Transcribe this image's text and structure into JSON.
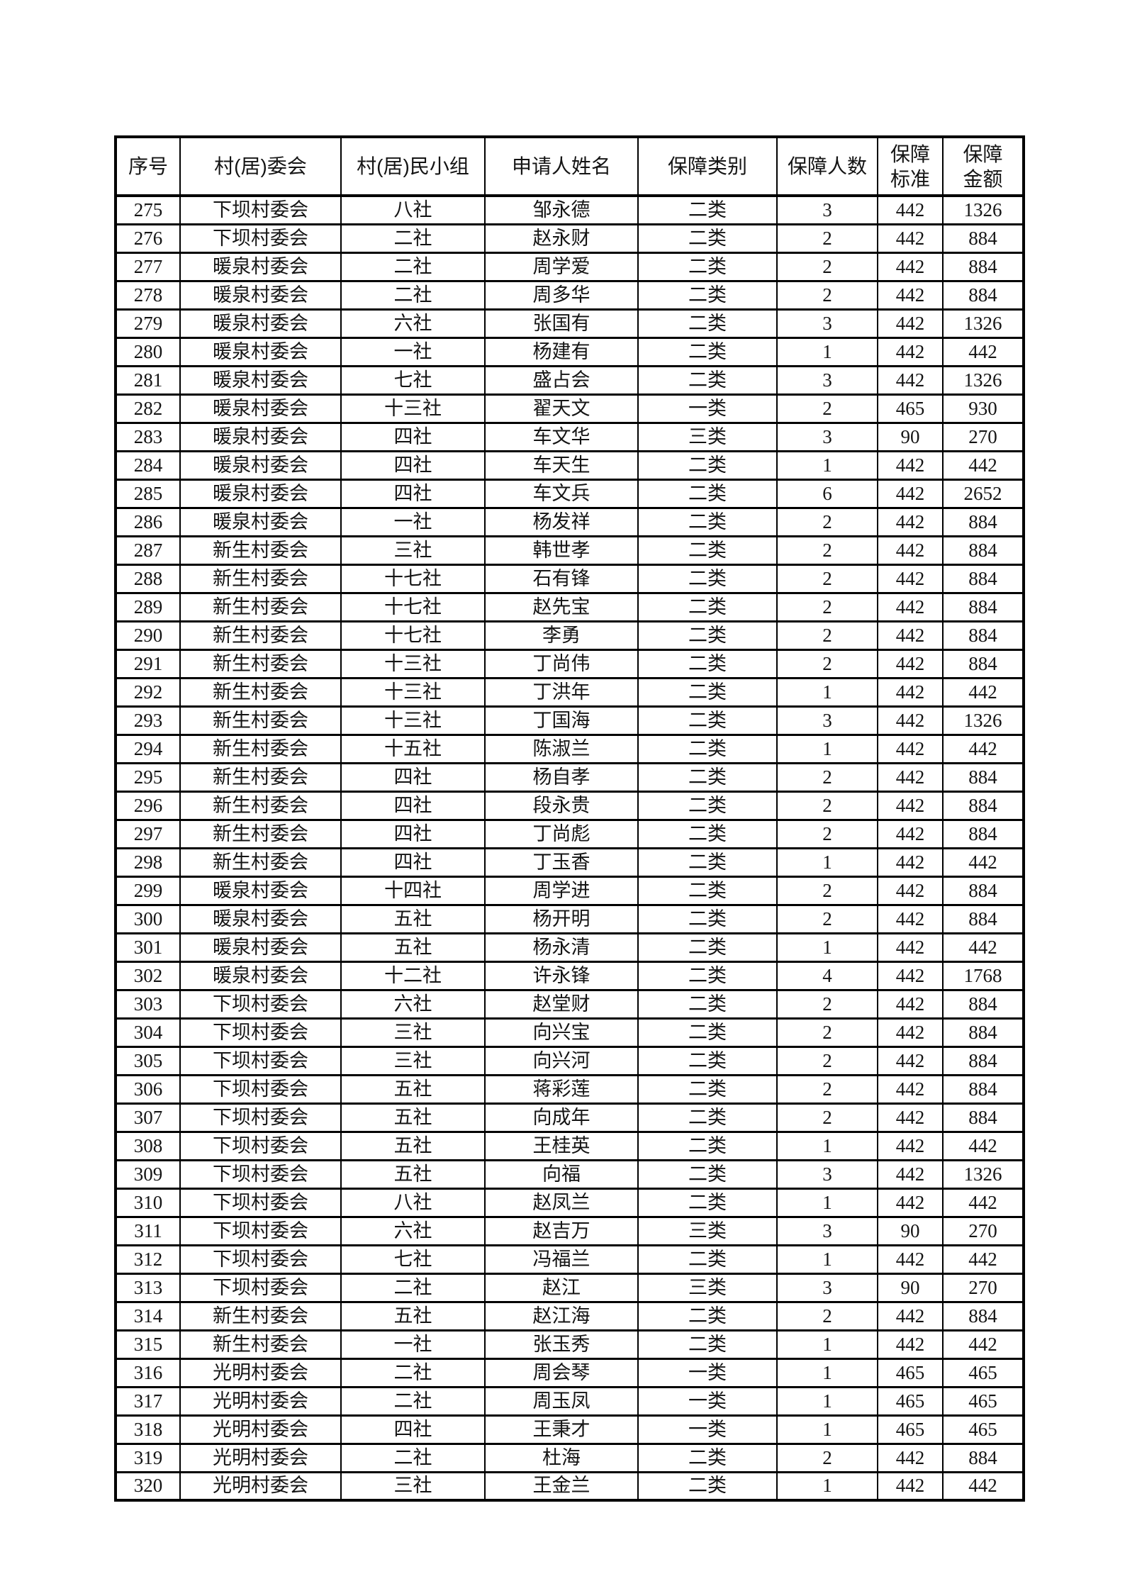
{
  "colors": {
    "background": "#ffffff",
    "text": "#141414",
    "border": "#000000"
  },
  "table": {
    "columns": [
      {
        "key": "index",
        "label": "序号"
      },
      {
        "key": "committee",
        "label": "村(居)委会"
      },
      {
        "key": "group",
        "label": "村(居)民小组"
      },
      {
        "key": "applicant",
        "label": "申请人姓名"
      },
      {
        "key": "category",
        "label": "保障类别"
      },
      {
        "key": "headcount",
        "label": "保障人数"
      },
      {
        "key": "standard",
        "label": "保障\n标准"
      },
      {
        "key": "amount",
        "label": "保障\n金额"
      }
    ],
    "rows": [
      [
        "275",
        "下坝村委会",
        "八社",
        "邹永德",
        "二类",
        "3",
        "442",
        "1326"
      ],
      [
        "276",
        "下坝村委会",
        "二社",
        "赵永财",
        "二类",
        "2",
        "442",
        "884"
      ],
      [
        "277",
        "暖泉村委会",
        "二社",
        "周学爱",
        "二类",
        "2",
        "442",
        "884"
      ],
      [
        "278",
        "暖泉村委会",
        "二社",
        "周多华",
        "二类",
        "2",
        "442",
        "884"
      ],
      [
        "279",
        "暖泉村委会",
        "六社",
        "张国有",
        "二类",
        "3",
        "442",
        "1326"
      ],
      [
        "280",
        "暖泉村委会",
        "一社",
        "杨建有",
        "二类",
        "1",
        "442",
        "442"
      ],
      [
        "281",
        "暖泉村委会",
        "七社",
        "盛占会",
        "二类",
        "3",
        "442",
        "1326"
      ],
      [
        "282",
        "暖泉村委会",
        "十三社",
        "翟天文",
        "一类",
        "2",
        "465",
        "930"
      ],
      [
        "283",
        "暖泉村委会",
        "四社",
        "车文华",
        "三类",
        "3",
        "90",
        "270"
      ],
      [
        "284",
        "暖泉村委会",
        "四社",
        "车天生",
        "二类",
        "1",
        "442",
        "442"
      ],
      [
        "285",
        "暖泉村委会",
        "四社",
        "车文兵",
        "二类",
        "6",
        "442",
        "2652"
      ],
      [
        "286",
        "暖泉村委会",
        "一社",
        "杨发祥",
        "二类",
        "2",
        "442",
        "884"
      ],
      [
        "287",
        "新生村委会",
        "三社",
        "韩世孝",
        "二类",
        "2",
        "442",
        "884"
      ],
      [
        "288",
        "新生村委会",
        "十七社",
        "石有锋",
        "二类",
        "2",
        "442",
        "884"
      ],
      [
        "289",
        "新生村委会",
        "十七社",
        "赵先宝",
        "二类",
        "2",
        "442",
        "884"
      ],
      [
        "290",
        "新生村委会",
        "十七社",
        "李勇",
        "二类",
        "2",
        "442",
        "884"
      ],
      [
        "291",
        "新生村委会",
        "十三社",
        "丁尚伟",
        "二类",
        "2",
        "442",
        "884"
      ],
      [
        "292",
        "新生村委会",
        "十三社",
        "丁洪年",
        "二类",
        "1",
        "442",
        "442"
      ],
      [
        "293",
        "新生村委会",
        "十三社",
        "丁国海",
        "二类",
        "3",
        "442",
        "1326"
      ],
      [
        "294",
        "新生村委会",
        "十五社",
        "陈淑兰",
        "二类",
        "1",
        "442",
        "442"
      ],
      [
        "295",
        "新生村委会",
        "四社",
        "杨自孝",
        "二类",
        "2",
        "442",
        "884"
      ],
      [
        "296",
        "新生村委会",
        "四社",
        "段永贵",
        "二类",
        "2",
        "442",
        "884"
      ],
      [
        "297",
        "新生村委会",
        "四社",
        "丁尚彪",
        "二类",
        "2",
        "442",
        "884"
      ],
      [
        "298",
        "新生村委会",
        "四社",
        "丁玉香",
        "二类",
        "1",
        "442",
        "442"
      ],
      [
        "299",
        "暖泉村委会",
        "十四社",
        "周学进",
        "二类",
        "2",
        "442",
        "884"
      ],
      [
        "300",
        "暖泉村委会",
        "五社",
        "杨开明",
        "二类",
        "2",
        "442",
        "884"
      ],
      [
        "301",
        "暖泉村委会",
        "五社",
        "杨永清",
        "二类",
        "1",
        "442",
        "442"
      ],
      [
        "302",
        "暖泉村委会",
        "十二社",
        "许永锋",
        "二类",
        "4",
        "442",
        "1768"
      ],
      [
        "303",
        "下坝村委会",
        "六社",
        "赵堂财",
        "二类",
        "2",
        "442",
        "884"
      ],
      [
        "304",
        "下坝村委会",
        "三社",
        "向兴宝",
        "二类",
        "2",
        "442",
        "884"
      ],
      [
        "305",
        "下坝村委会",
        "三社",
        "向兴河",
        "二类",
        "2",
        "442",
        "884"
      ],
      [
        "306",
        "下坝村委会",
        "五社",
        "蒋彩莲",
        "二类",
        "2",
        "442",
        "884"
      ],
      [
        "307",
        "下坝村委会",
        "五社",
        "向成年",
        "二类",
        "2",
        "442",
        "884"
      ],
      [
        "308",
        "下坝村委会",
        "五社",
        "王桂英",
        "二类",
        "1",
        "442",
        "442"
      ],
      [
        "309",
        "下坝村委会",
        "五社",
        "向福",
        "二类",
        "3",
        "442",
        "1326"
      ],
      [
        "310",
        "下坝村委会",
        "八社",
        "赵凤兰",
        "二类",
        "1",
        "442",
        "442"
      ],
      [
        "311",
        "下坝村委会",
        "六社",
        "赵吉万",
        "三类",
        "3",
        "90",
        "270"
      ],
      [
        "312",
        "下坝村委会",
        "七社",
        "冯福兰",
        "二类",
        "1",
        "442",
        "442"
      ],
      [
        "313",
        "下坝村委会",
        "二社",
        "赵江",
        "三类",
        "3",
        "90",
        "270"
      ],
      [
        "314",
        "新生村委会",
        "五社",
        "赵江海",
        "二类",
        "2",
        "442",
        "884"
      ],
      [
        "315",
        "新生村委会",
        "一社",
        "张玉秀",
        "二类",
        "1",
        "442",
        "442"
      ],
      [
        "316",
        "光明村委会",
        "二社",
        "周会琴",
        "一类",
        "1",
        "465",
        "465"
      ],
      [
        "317",
        "光明村委会",
        "二社",
        "周玉凤",
        "一类",
        "1",
        "465",
        "465"
      ],
      [
        "318",
        "光明村委会",
        "四社",
        "王秉才",
        "一类",
        "1",
        "465",
        "465"
      ],
      [
        "319",
        "光明村委会",
        "二社",
        "杜海",
        "二类",
        "2",
        "442",
        "884"
      ],
      [
        "320",
        "光明村委会",
        "三社",
        "王金兰",
        "二类",
        "1",
        "442",
        "442"
      ]
    ]
  }
}
